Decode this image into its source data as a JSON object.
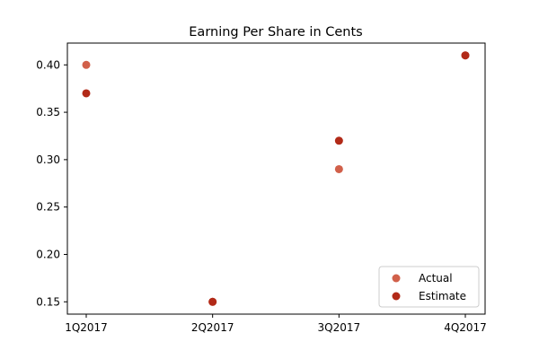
{
  "chart_data": {
    "type": "scatter",
    "title": "Earning Per Share in Cents",
    "xlabel": "",
    "ylabel": "",
    "categories": [
      "1Q2017",
      "2Q2017",
      "3Q2017",
      "4Q2017"
    ],
    "series": [
      {
        "name": "Actual",
        "color": "#d1604a",
        "values": [
          0.4,
          0.15,
          0.29,
          0.41
        ]
      },
      {
        "name": "Estimate",
        "color": "#b22a18",
        "values": [
          0.37,
          0.15,
          0.32,
          0.41
        ]
      }
    ],
    "yticks": [
      0.15,
      0.2,
      0.25,
      0.3,
      0.35,
      0.4
    ],
    "ytick_labels": [
      "0.15",
      "0.20",
      "0.25",
      "0.30",
      "0.35",
      "0.40"
    ],
    "ylim": [
      0.137,
      0.423
    ],
    "grid": false,
    "legend_position": "lower-right"
  }
}
